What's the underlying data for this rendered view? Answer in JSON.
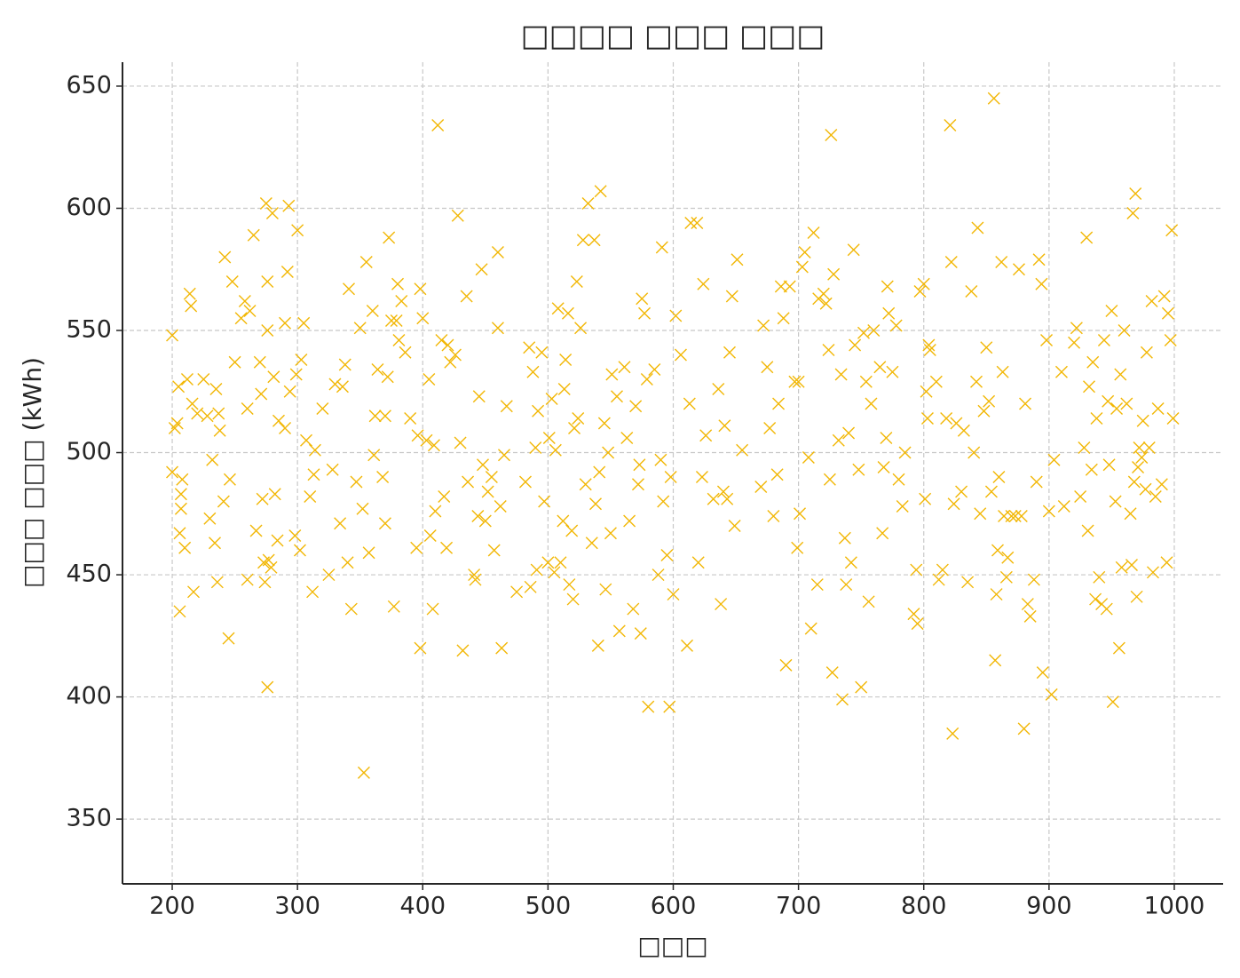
{
  "chart_data": {
    "type": "scatter",
    "title": "□□□□ □□□ □□□",
    "x_label": "□□□",
    "y_label": "□□□ □□□ (kWh)",
    "color": "#f2b705",
    "marker": "x",
    "grid": true,
    "xlim": [
      160.3,
      1039
    ],
    "ylim": [
      323.5,
      659.8
    ],
    "xticks": [
      200,
      300,
      400,
      500,
      600,
      700,
      800,
      900,
      1000
    ],
    "yticks": [
      350,
      400,
      450,
      500,
      550,
      600,
      650
    ],
    "x": [
      200,
      200,
      202,
      204,
      205,
      206,
      206,
      207,
      207,
      208,
      210,
      212,
      214,
      215,
      216,
      217,
      220,
      225,
      228,
      230,
      232,
      234,
      235,
      236,
      237,
      238,
      241,
      242,
      245,
      246,
      248,
      250,
      255,
      258,
      260,
      260,
      262,
      265,
      267,
      270,
      271,
      272,
      273,
      274,
      275,
      276,
      276,
      276,
      277,
      279,
      280,
      281,
      282,
      284,
      285,
      290,
      290,
      292,
      293,
      294,
      298,
      299,
      300,
      302,
      303,
      305,
      307,
      310,
      312,
      313,
      314,
      320,
      325,
      328,
      330,
      334,
      336,
      338,
      340,
      341,
      343,
      347,
      350,
      352,
      353,
      355,
      357,
      360,
      361,
      362,
      364,
      368,
      370,
      370,
      372,
      373,
      375,
      377,
      379,
      380,
      381,
      383,
      386,
      390,
      395,
      396,
      398,
      398,
      400,
      403,
      405,
      406,
      408,
      409,
      410,
      412,
      415,
      417,
      419,
      420,
      422,
      426,
      428,
      430,
      432,
      435,
      436,
      441,
      442,
      444,
      445,
      447,
      448,
      450,
      452,
      455,
      457,
      460,
      460,
      462,
      463,
      465,
      467,
      475,
      482,
      485,
      486,
      488,
      490,
      491,
      492,
      495,
      497,
      500,
      501,
      503,
      505,
      506,
      508,
      510,
      512,
      513,
      514,
      516,
      517,
      519,
      520,
      521,
      523,
      524,
      526,
      528,
      530,
      532,
      535,
      537,
      538,
      540,
      541,
      542,
      545,
      546,
      548,
      550,
      551,
      555,
      557,
      561,
      563,
      565,
      568,
      570,
      572,
      573,
      574,
      575,
      577,
      579,
      580,
      585,
      588,
      590,
      591,
      592,
      595,
      597,
      598,
      600,
      602,
      606,
      611,
      613,
      614,
      619,
      620,
      623,
      624,
      626,
      632,
      636,
      638,
      640,
      641,
      643,
      645,
      647,
      649,
      651,
      655,
      670,
      672,
      675,
      677,
      680,
      683,
      684,
      686,
      688,
      690,
      693,
      697,
      699,
      700,
      701,
      703,
      705,
      708,
      710,
      712,
      715,
      716,
      720,
      722,
      724,
      725,
      726,
      727,
      728,
      732,
      734,
      735,
      737,
      738,
      740,
      742,
      744,
      745,
      748,
      750,
      752,
      754,
      756,
      758,
      760,
      765,
      767,
      768,
      770,
      771,
      772,
      775,
      778,
      780,
      783,
      785,
      792,
      794,
      795,
      797,
      800,
      801,
      802,
      803,
      804,
      805,
      810,
      812,
      815,
      818,
      821,
      822,
      823,
      824,
      826,
      830,
      832,
      835,
      838,
      840,
      842,
      843,
      845,
      848,
      850,
      852,
      854,
      856,
      857,
      858,
      859,
      860,
      862,
      863,
      864,
      866,
      867,
      870,
      873,
      876,
      878,
      880,
      881,
      883,
      885,
      888,
      890,
      892,
      894,
      895,
      898,
      900,
      902,
      904,
      910,
      912,
      920,
      922,
      925,
      928,
      930,
      931,
      932,
      934,
      935,
      937,
      938,
      940,
      942,
      944,
      946,
      947,
      948,
      950,
      951,
      953,
      954,
      956,
      957,
      958,
      960,
      962,
      965,
      966,
      967,
      968,
      969,
      970,
      971,
      972,
      974,
      975,
      977,
      978,
      980,
      982,
      983,
      985,
      987,
      990,
      992,
      994,
      995,
      997,
      998,
      999
    ],
    "values": [
      548,
      492,
      510,
      512,
      527,
      435,
      467,
      483,
      477,
      489,
      461,
      530,
      565,
      560,
      520,
      443,
      516,
      530,
      515,
      473,
      497,
      463,
      526,
      447,
      516,
      509,
      480,
      580,
      424,
      489,
      570,
      537,
      555,
      562,
      518,
      448,
      558,
      589,
      468,
      537,
      524,
      481,
      455,
      447,
      602,
      404,
      570,
      550,
      456,
      453,
      598,
      531,
      483,
      464,
      513,
      510,
      553,
      574,
      601,
      525,
      466,
      532,
      591,
      460,
      538,
      553,
      505,
      482,
      443,
      491,
      501,
      518,
      450,
      493,
      528,
      471,
      527,
      536,
      455,
      567,
      436,
      488,
      551,
      477,
      369,
      578,
      459,
      558,
      499,
      515,
      534,
      490,
      471,
      515,
      531,
      588,
      554,
      437,
      554,
      569,
      546,
      562,
      541,
      514,
      461,
      507,
      567,
      420,
      555,
      505,
      530,
      466,
      436,
      503,
      476,
      634,
      546,
      482,
      461,
      544,
      537,
      540,
      597,
      504,
      419,
      564,
      488,
      450,
      448,
      474,
      523,
      575,
      495,
      472,
      484,
      490,
      460,
      582,
      551,
      478,
      420,
      499,
      519,
      443,
      488,
      543,
      445,
      533,
      502,
      452,
      517,
      541,
      480,
      455,
      506,
      522,
      451,
      501,
      559,
      455,
      472,
      526,
      538,
      557,
      446,
      468,
      440,
      510,
      570,
      514,
      551,
      587,
      487,
      602,
      463,
      587,
      479,
      421,
      492,
      607,
      512,
      444,
      500,
      467,
      532,
      523,
      427,
      535,
      506,
      472,
      436,
      519,
      487,
      495,
      426,
      563,
      557,
      530,
      396,
      534,
      450,
      497,
      584,
      480,
      458,
      396,
      490,
      442,
      556,
      540,
      421,
      520,
      594,
      594,
      455,
      490,
      569,
      507,
      481,
      526,
      438,
      484,
      511,
      481,
      541,
      564,
      470,
      579,
      501,
      486,
      552,
      535,
      510,
      474,
      491,
      520,
      568,
      555,
      413,
      568,
      529,
      461,
      529,
      475,
      576,
      582,
      498,
      428,
      590,
      446,
      563,
      565,
      561,
      542,
      489,
      630,
      410,
      573,
      505,
      532,
      399,
      465,
      446,
      508,
      455,
      583,
      544,
      493,
      404,
      549,
      529,
      439,
      520,
      550,
      535,
      467,
      494,
      506,
      568,
      557,
      533,
      552,
      489,
      478,
      500,
      434,
      452,
      430,
      566,
      569,
      481,
      525,
      514,
      544,
      542,
      529,
      448,
      452,
      514,
      634,
      578,
      385,
      479,
      512,
      484,
      509,
      447,
      566,
      500,
      529,
      592,
      475,
      517,
      543,
      521,
      484,
      645,
      415,
      442,
      460,
      490,
      578,
      533,
      474,
      449,
      457,
      474,
      474,
      575,
      474,
      387,
      520,
      438,
      433,
      448,
      488,
      579,
      569,
      410,
      546,
      476,
      401,
      497,
      533,
      478,
      545,
      551,
      482,
      502,
      588,
      468,
      527,
      493,
      537,
      440,
      514,
      449,
      438,
      546,
      436,
      521,
      495,
      558,
      398,
      480,
      518,
      420,
      532,
      453,
      550,
      520,
      475,
      454,
      598,
      488,
      606,
      441,
      494,
      502,
      498,
      513,
      485,
      541,
      502,
      562,
      451,
      482,
      518,
      487,
      564,
      455,
      557,
      546,
      591,
      514
    ]
  }
}
